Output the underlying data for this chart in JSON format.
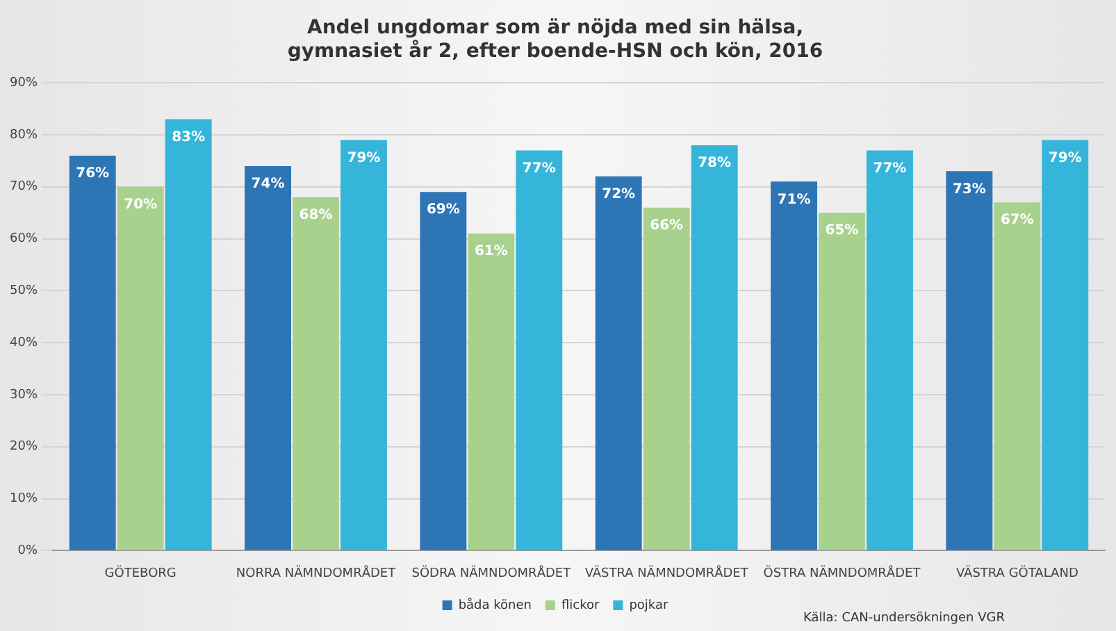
{
  "chart_data": {
    "type": "bar",
    "title": [
      "Andel ungdomar som är nöjda med sin hälsa,",
      "gymnasiet år 2, efter boende-HSN och kön, 2016"
    ],
    "categories": [
      "GÖTEBORG",
      "NORRA NÄMNDOMRÅDET",
      "SÖDRA NÄMNDOMRÅDET",
      "VÄSTRA NÄMNDOMRÅDET",
      "ÖSTRA NÄMNDOMRÅDET",
      "VÄSTRA GÖTALAND"
    ],
    "series": [
      {
        "name": "båda könen",
        "color": "#2e75b6",
        "values": [
          76,
          74,
          69,
          72,
          71,
          73
        ],
        "value_labels": [
          "76%",
          "74%",
          "69%",
          "72%",
          "71%",
          "73%"
        ]
      },
      {
        "name": "flickor",
        "color": "#a9d18e",
        "values": [
          70,
          68,
          61,
          66,
          65,
          67
        ],
        "value_labels": [
          "70%",
          "68%",
          "61%",
          "66%",
          "65%",
          "67%"
        ]
      },
      {
        "name": "pojkar",
        "color": "#35b5d9",
        "values": [
          83,
          79,
          77,
          78,
          77,
          79
        ],
        "value_labels": [
          "83%",
          "79%",
          "77%",
          "78%",
          "77%",
          "79%"
        ]
      }
    ],
    "ylim": [
      0,
      90
    ],
    "yticks": [
      {
        "value": 0,
        "label": "0%"
      },
      {
        "value": 10,
        "label": "10%"
      },
      {
        "value": 20,
        "label": "20%"
      },
      {
        "value": 30,
        "label": "30%"
      },
      {
        "value": 40,
        "label": "40%"
      },
      {
        "value": 50,
        "label": "50%"
      },
      {
        "value": 60,
        "label": "60%"
      },
      {
        "value": 70,
        "label": "70%"
      },
      {
        "value": 80,
        "label": "80%"
      },
      {
        "value": 90,
        "label": "90%"
      }
    ],
    "grid": "y",
    "legend": "bottom",
    "annotations": [
      "Källa: CAN-undersökningen VGR"
    ]
  }
}
